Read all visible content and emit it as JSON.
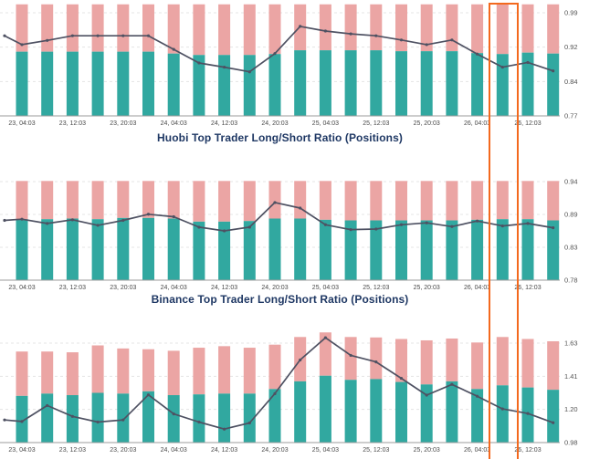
{
  "colors": {
    "long_bar_teal": "#31A8A0",
    "short_bar_pink": "#EBA5A4",
    "ratio_line": "#4E5162",
    "highlight_orange": "#F3691E",
    "title_navy": "#1F3864",
    "axis_gray": "#9B9B9B",
    "tick_label_gray": "#4A4A4A"
  },
  "highlight": {
    "color": "#F3691E",
    "covered_bar_index": 19
  },
  "chart_data": [
    {
      "id": "huobi",
      "type": "bar+line",
      "title": "Huobi Top Trader Long/Short Ratio (Positions)",
      "grid": "dashed horizontal at ticks",
      "legend": "none",
      "y_axis_side": "right",
      "ylim": [
        0.77,
        0.99
      ],
      "y_ticks": [
        {
          "label": "0.99",
          "value": 0.99
        },
        {
          "label": "0.92",
          "value": 0.9167
        },
        {
          "label": "0.84",
          "value": 0.8433
        },
        {
          "label": "0.77",
          "value": 0.77
        }
      ],
      "x_tick_labels": [
        "23, 04:03",
        "23, 12:03",
        "23, 20:03",
        "24, 04:03",
        "24, 12:03",
        "24, 20:03",
        "25, 04:03",
        "25, 12:03",
        "25, 20:03",
        "26, 04:03",
        "26, 12:03"
      ],
      "series": [
        {
          "name": "short_bar_top",
          "role": "bar-pink-top",
          "values": [
            1.008,
            1.008,
            1.008,
            1.008,
            1.008,
            1.008,
            1.008,
            1.008,
            1.008,
            1.008,
            1.008,
            1.008,
            1.008,
            1.008,
            1.008,
            1.008,
            1.008,
            1.008,
            1.008,
            1.008,
            1.008,
            1.008
          ]
        },
        {
          "name": "long_bar_top",
          "role": "bar-teal-top",
          "values": [
            0.907,
            0.907,
            0.907,
            0.907,
            0.907,
            0.907,
            0.903,
            0.9,
            0.9,
            0.9,
            0.902,
            0.91,
            0.91,
            0.91,
            0.91,
            0.908,
            0.908,
            0.908,
            0.904,
            0.902,
            0.905,
            0.903
          ]
        },
        {
          "name": "ratio_line",
          "role": "line",
          "lead_value": 0.941,
          "values": [
            0.922,
            0.931,
            0.941,
            0.941,
            0.941,
            0.941,
            0.912,
            0.883,
            0.874,
            0.864,
            0.903,
            0.961,
            0.951,
            0.945,
            0.941,
            0.932,
            0.922,
            0.932,
            0.902,
            0.874,
            0.884,
            0.866
          ]
        }
      ]
    },
    {
      "id": "binance",
      "type": "bar+line",
      "title": "Binance Top Trader Long/Short Ratio (Positions)",
      "grid": "dashed horizontal at ticks",
      "legend": "none",
      "y_axis_side": "right",
      "ylim": [
        0.78,
        0.94
      ],
      "y_ticks": [
        {
          "label": "0.94",
          "value": 0.94
        },
        {
          "label": "0.89",
          "value": 0.8867
        },
        {
          "label": "0.83",
          "value": 0.8333
        },
        {
          "label": "0.78",
          "value": 0.78
        }
      ],
      "x_tick_labels": [
        "23, 04:03",
        "23, 12:03",
        "23, 20:03",
        "24, 04:03",
        "24, 12:03",
        "24, 20:03",
        "25, 04:03",
        "25, 12:03",
        "25, 20:03",
        "26, 04:03",
        "26, 12:03"
      ],
      "series": [
        {
          "name": "short_bar_top",
          "role": "bar-pink-top",
          "values": [
            0.941,
            0.941,
            0.941,
            0.941,
            0.941,
            0.941,
            0.941,
            0.941,
            0.941,
            0.941,
            0.941,
            0.941,
            0.941,
            0.941,
            0.941,
            0.941,
            0.941,
            0.941,
            0.941,
            0.941,
            0.941,
            0.941
          ]
        },
        {
          "name": "long_bar_top",
          "role": "bar-teal-top",
          "values": [
            0.879,
            0.879,
            0.88,
            0.879,
            0.881,
            0.881,
            0.88,
            0.875,
            0.875,
            0.876,
            0.88,
            0.88,
            0.878,
            0.877,
            0.877,
            0.877,
            0.877,
            0.877,
            0.878,
            0.879,
            0.879,
            0.877
          ]
        },
        {
          "name": "ratio_line",
          "role": "line",
          "lead_value": 0.877,
          "values": [
            0.879,
            0.872,
            0.878,
            0.869,
            0.877,
            0.887,
            0.883,
            0.866,
            0.86,
            0.866,
            0.906,
            0.897,
            0.87,
            0.862,
            0.863,
            0.87,
            0.873,
            0.867,
            0.876,
            0.868,
            0.872,
            0.865
          ]
        }
      ]
    },
    {
      "id": "third-exchange",
      "type": "bar+line",
      "title": "",
      "grid": "dashed horizontal at ticks",
      "legend": "none",
      "y_axis_side": "right",
      "ylim": [
        0.98,
        1.63
      ],
      "y_ticks": [
        {
          "label": "1.63",
          "value": 1.63
        },
        {
          "label": "1.41",
          "value": 1.4133
        },
        {
          "label": "1.20",
          "value": 1.1967
        },
        {
          "label": "0.98",
          "value": 0.98
        }
      ],
      "x_tick_labels": [
        "23, 04:03",
        "23, 12:03",
        "23, 20:03",
        "24, 04:03",
        "24, 12:03",
        "24, 20:03",
        "25, 04:03",
        "25, 12:03",
        "25, 20:03",
        "26, 04:03",
        "26, 12:03"
      ],
      "series": [
        {
          "name": "short_bar_top",
          "role": "bar-pink-top",
          "values": [
            1.575,
            1.575,
            1.57,
            1.615,
            1.595,
            1.59,
            1.58,
            1.6,
            1.61,
            1.6,
            1.62,
            1.67,
            1.7,
            1.67,
            1.667,
            1.657,
            1.648,
            1.66,
            1.634,
            1.67,
            1.657,
            1.642
          ]
        },
        {
          "name": "long_bar_top",
          "role": "bar-teal-top",
          "values": [
            1.285,
            1.3,
            1.29,
            1.305,
            1.3,
            1.315,
            1.29,
            1.295,
            1.3,
            1.3,
            1.33,
            1.38,
            1.417,
            1.39,
            1.395,
            1.376,
            1.36,
            1.38,
            1.33,
            1.354,
            1.34,
            1.325
          ]
        },
        {
          "name": "ratio_line",
          "role": "line",
          "lead_value": 1.128,
          "values": [
            1.118,
            1.222,
            1.151,
            1.114,
            1.128,
            1.292,
            1.167,
            1.114,
            1.068,
            1.108,
            1.3,
            1.52,
            1.665,
            1.55,
            1.507,
            1.4,
            1.29,
            1.36,
            1.283,
            1.2,
            1.17,
            1.11
          ]
        }
      ]
    }
  ]
}
